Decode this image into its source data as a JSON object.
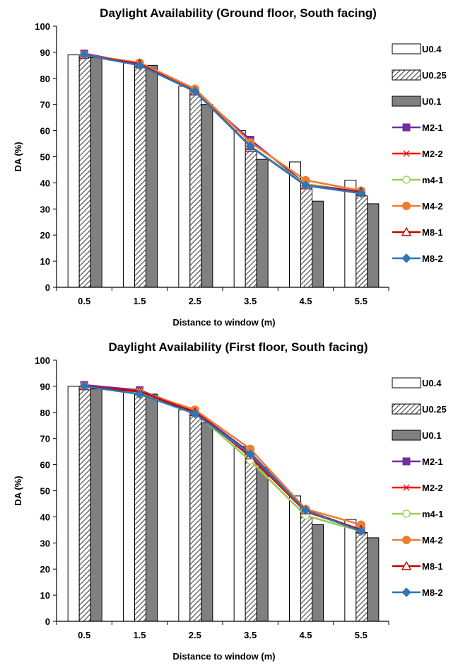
{
  "chart_data": [
    {
      "type": "bar",
      "title": "Daylight Availability (Ground floor, South facing)",
      "xlabel": "Distance to window (m)",
      "ylabel": "DA (%)",
      "ylim": [
        0,
        100
      ],
      "yticks": [
        0,
        10,
        20,
        30,
        40,
        50,
        60,
        70,
        80,
        90,
        100
      ],
      "categories": [
        "0.5",
        "1.5",
        "2.5",
        "3.5",
        "4.5",
        "5.5"
      ],
      "legend_position": "right",
      "bar_series": [
        {
          "name": "U0.4",
          "values": [
            89,
            86,
            77,
            60,
            48,
            41
          ]
        },
        {
          "name": "U0.25",
          "values": [
            88,
            85,
            74,
            52,
            38,
            35
          ]
        },
        {
          "name": "U0.1",
          "values": [
            88,
            85,
            70,
            49,
            33,
            32
          ]
        }
      ],
      "line_series": [
        {
          "name": "M2-1",
          "color": "#7030A0",
          "marker": "square",
          "values": [
            89.5,
            85.5,
            75.0,
            56.5,
            39.5,
            36.5
          ]
        },
        {
          "name": "M2-2",
          "color": "#FF0000",
          "marker": "asterisk",
          "values": [
            89.0,
            86.0,
            75.5,
            54.0,
            39.0,
            36.5
          ]
        },
        {
          "name": "m4-1",
          "color": "#92D050",
          "marker": "circle-open",
          "values": [
            89.0,
            85.5,
            75.0,
            54.0,
            39.5,
            36.0
          ]
        },
        {
          "name": "M4-2",
          "color": "#ED7D31",
          "marker": "circle",
          "values": [
            89.0,
            86.0,
            76.0,
            55.5,
            41.0,
            37.0
          ]
        },
        {
          "name": "M8-1",
          "color": "#C00000",
          "marker": "triangle-open",
          "values": [
            89.0,
            85.5,
            75.0,
            54.0,
            39.0,
            36.5
          ]
        },
        {
          "name": "M8-2",
          "color": "#2E75B6",
          "marker": "diamond",
          "values": [
            89.0,
            85.0,
            75.0,
            54.0,
            39.0,
            36.0
          ]
        }
      ]
    },
    {
      "type": "bar",
      "title": "Daylight Availability (First floor, South facing)",
      "xlabel": "Distance to window (m)",
      "ylabel": "DA (%)",
      "ylim": [
        0,
        100
      ],
      "yticks": [
        0,
        10,
        20,
        30,
        40,
        50,
        60,
        70,
        80,
        90,
        100
      ],
      "categories": [
        "0.5",
        "1.5",
        "2.5",
        "3.5",
        "4.5",
        "5.5"
      ],
      "legend_position": "right",
      "bar_series": [
        {
          "name": "U0.4",
          "values": [
            90,
            88,
            81,
            67,
            48,
            39
          ]
        },
        {
          "name": "U0.25",
          "values": [
            90,
            87,
            79,
            61,
            40,
            34
          ]
        },
        {
          "name": "U0.1",
          "values": [
            89,
            87,
            76,
            59,
            37,
            32
          ]
        }
      ],
      "line_series": [
        {
          "name": "M2-1",
          "color": "#7030A0",
          "marker": "square",
          "values": [
            90.5,
            88.5,
            80.5,
            64.5,
            42.5,
            35.0
          ]
        },
        {
          "name": "M2-2",
          "color": "#FF0000",
          "marker": "asterisk",
          "values": [
            90.0,
            88.0,
            80.5,
            63.0,
            42.0,
            35.0
          ]
        },
        {
          "name": "m4-1",
          "color": "#92D050",
          "marker": "circle-open",
          "values": [
            90.0,
            87.5,
            80.0,
            61.5,
            40.5,
            34.5
          ]
        },
        {
          "name": "M4-2",
          "color": "#ED7D31",
          "marker": "circle",
          "values": [
            90.0,
            88.0,
            81.0,
            66.0,
            43.0,
            37.0
          ]
        },
        {
          "name": "M8-1",
          "color": "#C00000",
          "marker": "triangle-open",
          "values": [
            90.0,
            88.0,
            80.0,
            63.5,
            42.5,
            35.0
          ]
        },
        {
          "name": "M8-2",
          "color": "#2E75B6",
          "marker": "diamond",
          "values": [
            90.0,
            87.0,
            79.5,
            64.0,
            42.5,
            34.5
          ]
        }
      ]
    }
  ]
}
